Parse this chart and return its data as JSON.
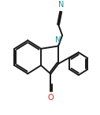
{
  "background_color": "#ffffff",
  "line_color": "#1a1a1a",
  "line_width": 1.4,
  "fig_width": 1.27,
  "fig_height": 1.46,
  "dpi": 100,
  "n_color": "#1a9090",
  "o_color": "#cc2222",
  "n_fontsize": 7.0,
  "o_fontsize": 7.0,
  "xlim": [
    0.0,
    1.0
  ],
  "ylim": [
    0.0,
    1.0
  ]
}
